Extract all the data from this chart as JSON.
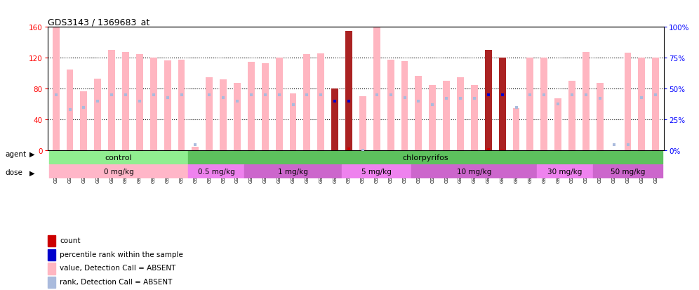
{
  "title": "GDS3143 / 1369683_at",
  "samples": [
    "GSM246129",
    "GSM246130",
    "GSM246131",
    "GSM246145",
    "GSM246146",
    "GSM246147",
    "GSM246148",
    "GSM246157",
    "GSM246158",
    "GSM246159",
    "GSM246149",
    "GSM246150",
    "GSM246151",
    "GSM246152",
    "GSM246132",
    "GSM246133",
    "GSM246134",
    "GSM246135",
    "GSM246160",
    "GSM246161",
    "GSM246162",
    "GSM246163",
    "GSM246164",
    "GSM246165",
    "GSM246166",
    "GSM246167",
    "GSM246136",
    "GSM246137",
    "GSM246138",
    "GSM246139",
    "GSM246140",
    "GSM246168",
    "GSM246169",
    "GSM246170",
    "GSM246171",
    "GSM246154",
    "GSM246155",
    "GSM246156",
    "GSM246172",
    "GSM246173",
    "GSM246141",
    "GSM246142",
    "GSM246143",
    "GSM246144"
  ],
  "bar_values": [
    160,
    105,
    77,
    93,
    130,
    128,
    125,
    120,
    117,
    118,
    5,
    95,
    92,
    88,
    115,
    113,
    120,
    74,
    125,
    126,
    80,
    155,
    70,
    160,
    118,
    116,
    97,
    85,
    90,
    95,
    85,
    130,
    120,
    55,
    120,
    120,
    68,
    90,
    128,
    88,
    0,
    127,
    120,
    120
  ],
  "rank_values_pct": [
    45,
    33,
    35,
    40,
    45,
    45,
    40,
    45,
    43,
    45,
    5,
    45,
    43,
    40,
    45,
    45,
    45,
    37,
    45,
    45,
    40,
    40,
    0,
    45,
    45,
    43,
    40,
    37,
    42,
    42,
    42,
    45,
    45,
    35,
    45,
    45,
    38,
    45,
    45,
    42,
    5,
    5,
    43,
    45
  ],
  "detection_absent": [
    true,
    true,
    true,
    true,
    true,
    true,
    true,
    true,
    true,
    true,
    true,
    true,
    true,
    true,
    true,
    true,
    true,
    true,
    true,
    true,
    false,
    false,
    true,
    true,
    true,
    true,
    true,
    true,
    true,
    true,
    true,
    false,
    false,
    true,
    true,
    true,
    true,
    true,
    true,
    true,
    true,
    true,
    true,
    true
  ],
  "count_values": [
    0,
    0,
    0,
    0,
    0,
    0,
    0,
    0,
    0,
    0,
    0,
    0,
    0,
    0,
    0,
    0,
    0,
    0,
    0,
    0,
    0,
    3,
    0,
    0,
    0,
    0,
    0,
    0,
    0,
    0,
    0,
    2,
    1,
    0,
    0,
    0,
    0,
    0,
    0,
    0,
    0,
    0,
    0,
    0
  ],
  "agent_groups": [
    {
      "label": "control",
      "start": 0,
      "end": 9,
      "color": "#90EE90"
    },
    {
      "label": "chlorpyrifos",
      "start": 10,
      "end": 43,
      "color": "#5DC15D"
    }
  ],
  "dose_groups": [
    {
      "label": "0 mg/kg",
      "start": 0,
      "end": 9,
      "color": "#FFB6C8"
    },
    {
      "label": "0.5 mg/kg",
      "start": 10,
      "end": 13,
      "color": "#EE82EE"
    },
    {
      "label": "1 mg/kg",
      "start": 14,
      "end": 20,
      "color": "#CC66CC"
    },
    {
      "label": "5 mg/kg",
      "start": 21,
      "end": 25,
      "color": "#EE82EE"
    },
    {
      "label": "10 mg/kg",
      "start": 26,
      "end": 34,
      "color": "#CC66CC"
    },
    {
      "label": "30 mg/kg",
      "start": 35,
      "end": 38,
      "color": "#EE82EE"
    },
    {
      "label": "50 mg/kg",
      "start": 39,
      "end": 43,
      "color": "#CC66CC"
    }
  ],
  "ylim_left": [
    0,
    160
  ],
  "ylim_right": [
    0,
    100
  ],
  "yticks_left": [
    0,
    40,
    80,
    120,
    160
  ],
  "yticks_right": [
    0,
    25,
    50,
    75,
    100
  ],
  "bar_color_present": "#AA2222",
  "bar_color_absent": "#FFB6C1",
  "rank_color_present": "#0000CC",
  "rank_color_absent": "#AABBDD",
  "count_color": "#CC0000",
  "bg_color": "#FFFFFF"
}
